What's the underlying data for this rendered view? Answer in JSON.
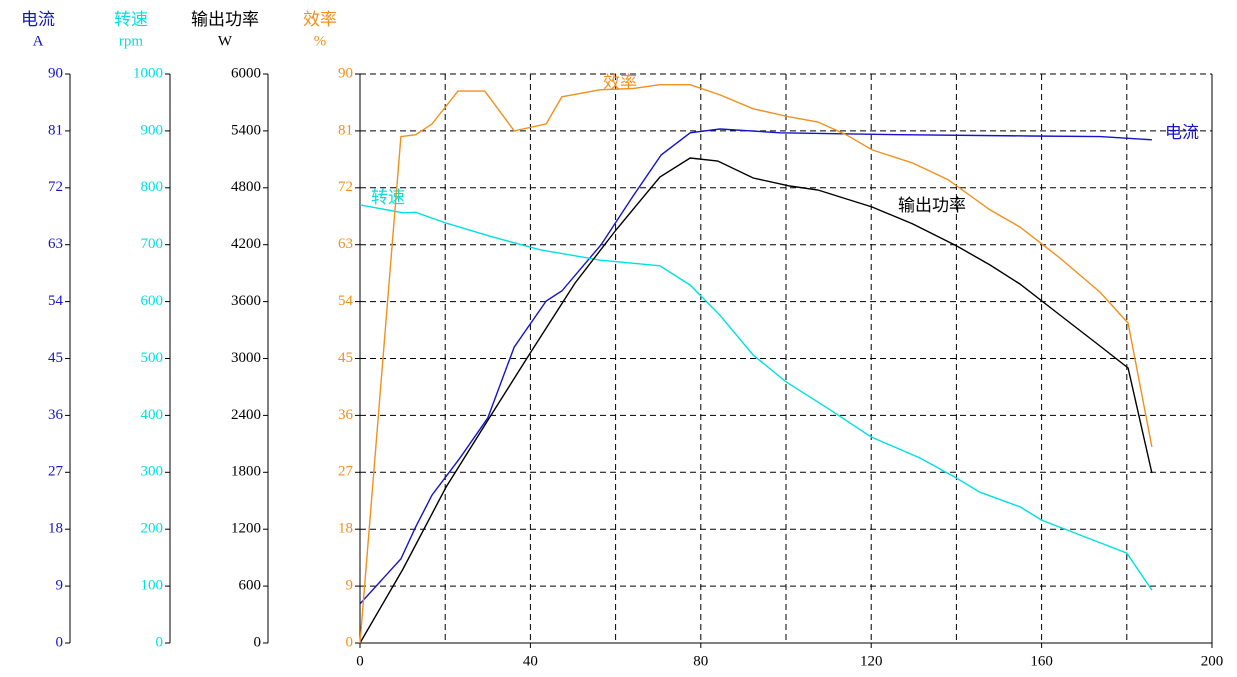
{
  "chart_data": {
    "type": "line",
    "xlim": [
      0,
      200
    ],
    "xticks": [
      0,
      40,
      80,
      120,
      160,
      200
    ],
    "xgrid": [
      20,
      40,
      60,
      80,
      100,
      120,
      140,
      160,
      180
    ],
    "grid": true,
    "series": [
      {
        "name": "电流",
        "unit": "A",
        "color": "#1414c8",
        "ylim": [
          0,
          90
        ],
        "yticks": [
          0,
          9,
          18,
          27,
          36,
          45,
          54,
          63,
          72,
          81,
          90
        ],
        "x": [
          0,
          9.6,
          13.1,
          16.9,
          23.5,
          30,
          36.2,
          43.7,
          47.4,
          56.6,
          64.1,
          70.7,
          77.5,
          84.5,
          98.6,
          126.8,
          157.3,
          173.7,
          185.9
        ],
        "values": [
          6.2,
          13.3,
          18.4,
          23.4,
          29.3,
          35.6,
          46.8,
          54.1,
          55.7,
          63,
          70.7,
          77.2,
          80.7,
          81.3,
          80.7,
          80.4,
          80.2,
          80.1,
          79.6
        ]
      },
      {
        "name": "转速",
        "unit": "rpm",
        "color": "#00e0e0",
        "ylim": [
          0,
          1000
        ],
        "yticks": [
          0,
          100,
          200,
          300,
          400,
          500,
          600,
          700,
          800,
          900,
          1000
        ],
        "x": [
          0,
          10.1,
          13.1,
          20.2,
          30.5,
          42.3,
          56.3,
          70.4,
          77.5,
          84.5,
          92.3,
          100,
          110.3,
          120,
          131.5,
          140,
          145.5,
          155,
          160,
          170,
          180,
          185.9
        ],
        "values": [
          770,
          756,
          757,
          738,
          715,
          691,
          673,
          663,
          629,
          576,
          506,
          459,
          410,
          362,
          325,
          290,
          265,
          239,
          216,
          187,
          158,
          93
        ]
      },
      {
        "name": "输出功率",
        "unit": "W",
        "color": "#000000",
        "ylim": [
          0,
          6000
        ],
        "yticks": [
          0,
          600,
          1200,
          1800,
          2400,
          3000,
          3600,
          4200,
          4800,
          5400,
          6000
        ],
        "x": [
          0,
          10.1,
          20.2,
          30.5,
          40.1,
          50.5,
          60.1,
          70.4,
          77.5,
          84,
          92.3,
          100.9,
          107.5,
          120.2,
          129.8,
          140.1,
          147.9,
          154.9,
          164.3,
          173.7,
          180.3,
          185.9
        ],
        "values": [
          0,
          780,
          1645,
          2383,
          3068,
          3796,
          4355,
          4914,
          5114,
          5083,
          4903,
          4819,
          4777,
          4598,
          4418,
          4186,
          3986,
          3786,
          3459,
          3132,
          2900,
          1793
        ]
      },
      {
        "name": "效率",
        "unit": "%",
        "color": "#f0901e",
        "ylim": [
          0,
          90
        ],
        "yticks": [
          0,
          9,
          18,
          27,
          36,
          45,
          54,
          63,
          72,
          81,
          90
        ],
        "x": [
          0,
          9.6,
          13.1,
          16.9,
          23,
          29.3,
          36.2,
          43.7,
          47.4,
          56.3,
          64.1,
          70.4,
          77.5,
          84.5,
          92.3,
          100.9,
          107.5,
          114.1,
          120.2,
          129.8,
          138,
          147.9,
          154.9,
          164.3,
          173.7,
          180.3,
          185.9
        ],
        "values": [
          0,
          80.1,
          80.4,
          82.1,
          87.3,
          87.3,
          81,
          82.1,
          86.4,
          87.5,
          87.7,
          88.3,
          88.3,
          86.7,
          84.5,
          83.2,
          82.4,
          80.4,
          78,
          75.9,
          73.3,
          68.5,
          65.8,
          60.9,
          55.5,
          50.6,
          31
        ]
      }
    ]
  }
}
